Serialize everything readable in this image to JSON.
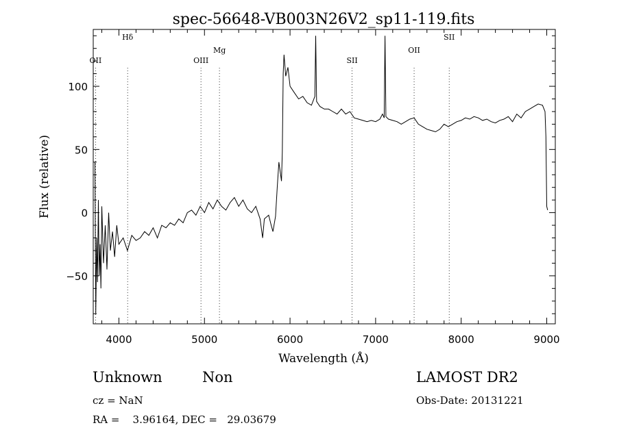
{
  "chart_data": {
    "type": "line",
    "title": "spec-56648-VB003N26V2_sp11-119.fits",
    "xlabel": "Wavelength (Å)",
    "ylabel": "Flux (relative)",
    "xlim": [
      3700,
      9100
    ],
    "ylim": [
      -88,
      145
    ],
    "xticks": [
      4000,
      5000,
      6000,
      7000,
      8000,
      9000
    ],
    "yticks": [
      -50,
      0,
      50,
      100
    ],
    "grid": false,
    "series": [
      {
        "x": [
          3720,
          3730,
          3740,
          3750,
          3760,
          3770,
          3780,
          3790,
          3800,
          3820,
          3840,
          3860,
          3880,
          3900,
          3925,
          3950,
          3975,
          4000,
          4050,
          4100,
          4150,
          4200,
          4250,
          4300,
          4350,
          4400,
          4450,
          4500,
          4550,
          4600,
          4650,
          4700,
          4750,
          4800,
          4850,
          4900,
          4950,
          5000,
          5050,
          5100,
          5150,
          5200,
          5250,
          5300,
          5350,
          5400,
          5450,
          5500,
          5550,
          5600,
          5650,
          5680,
          5700,
          5750,
          5780,
          5800,
          5830,
          5850,
          5870,
          5900,
          5910,
          5920,
          5930,
          5950,
          5975,
          6000,
          6050,
          6100,
          6150,
          6200,
          6250,
          6290,
          6300,
          6310,
          6350,
          6400,
          6450,
          6500,
          6550,
          6600,
          6650,
          6700,
          6750,
          6800,
          6850,
          6900,
          6950,
          7000,
          7050,
          7080,
          7100,
          7110,
          7120,
          7150,
          7200,
          7250,
          7300,
          7350,
          7400,
          7450,
          7500,
          7550,
          7600,
          7650,
          7700,
          7750,
          7800,
          7850,
          7900,
          7950,
          8000,
          8050,
          8100,
          8150,
          8200,
          8250,
          8300,
          8350,
          8400,
          8450,
          8500,
          8550,
          8600,
          8650,
          8700,
          8750,
          8800,
          8850,
          8900,
          8950,
          8980,
          8990,
          9000,
          9010
        ],
        "y": [
          40,
          -80,
          -20,
          -55,
          10,
          -50,
          -25,
          -60,
          5,
          -40,
          -10,
          -45,
          0,
          -30,
          -15,
          -35,
          -10,
          -25,
          -20,
          -30,
          -18,
          -22,
          -20,
          -15,
          -18,
          -12,
          -20,
          -10,
          -12,
          -8,
          -10,
          -5,
          -8,
          0,
          2,
          -2,
          5,
          0,
          8,
          3,
          10,
          5,
          2,
          8,
          12,
          5,
          10,
          3,
          0,
          5,
          -5,
          -20,
          -5,
          -2,
          -10,
          -15,
          -3,
          20,
          40,
          25,
          48,
          110,
          125,
          108,
          115,
          100,
          95,
          90,
          92,
          87,
          85,
          92,
          140,
          88,
          84,
          82,
          82,
          80,
          78,
          82,
          78,
          80,
          75,
          74,
          73,
          72,
          73,
          72,
          74,
          78,
          75,
          140,
          76,
          74,
          73,
          72,
          70,
          72,
          74,
          75,
          70,
          68,
          66,
          65,
          64,
          66,
          70,
          68,
          70,
          72,
          73,
          75,
          74,
          76,
          75,
          73,
          74,
          72,
          71,
          73,
          74,
          76,
          72,
          78,
          75,
          80,
          82,
          84,
          86,
          85,
          80,
          60,
          5,
          2
        ]
      }
    ],
    "lines": [
      {
        "label": "OII",
        "x": 3727
      },
      {
        "label": "Hδ",
        "x": 4102
      },
      {
        "label": "OIII",
        "x": 4959
      },
      {
        "label": "Mg",
        "x": 5175
      },
      {
        "label": "SII",
        "x": 6725
      },
      {
        "label": "OII",
        "x": 7450
      },
      {
        "label": "SII",
        "x": 7860
      }
    ]
  },
  "info": {
    "class_label": "Unknown",
    "subclass_label": "Non",
    "cz": "cz = NaN",
    "coords": "RA =    3.96164, DEC =   29.03679",
    "survey": "LAMOST DR2",
    "obs_date": "Obs-Date: 20131221"
  }
}
